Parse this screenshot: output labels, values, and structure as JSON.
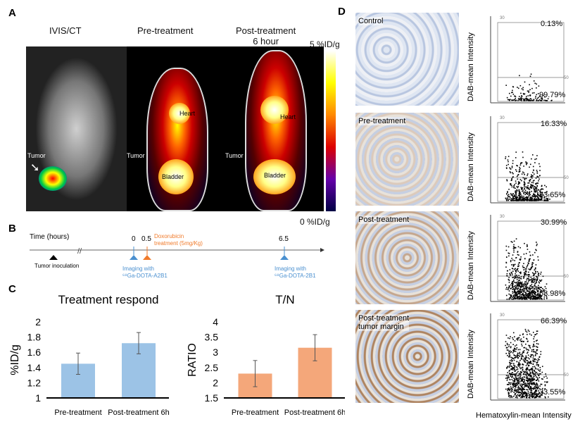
{
  "panel_a": {
    "label": "A",
    "titles": [
      "IVIS/CT",
      "Pre-treatment",
      "Post-treatment\n6 hour"
    ],
    "tumor": "Tumor",
    "heart": "Heart",
    "bladder": "Bladder",
    "scale_max": "5 %ID/g",
    "scale_min": "0 %ID/g"
  },
  "panel_b": {
    "label": "B",
    "time_label": "Time (hours)",
    "t0": "0",
    "t05": "0.5",
    "t65": "6.5",
    "inoculation": "Tumor inoculation",
    "dox": "Doxorubicin\ntreatment (5mg/Kg)",
    "imaging1": "Imaging with",
    "probe1": "⁶⁸Ga-DOTA-A2B1",
    "imaging2": "Imaging with",
    "probe2": "⁶⁸Ga-DOTA-2B1",
    "colors": {
      "blue": "#4a90d0",
      "orange": "#f07a2a"
    }
  },
  "panel_c": {
    "label": "C"
  },
  "chart_data": [
    {
      "type": "bar",
      "title": "Treatment respond",
      "ylabel": "%ID/g",
      "categories": [
        "Pre-treatment",
        "Post-treatment 6h"
      ],
      "values": [
        1.45,
        1.72
      ],
      "errors": [
        0.14,
        0.14
      ],
      "ylim": [
        1,
        2
      ],
      "yticks": [
        "1",
        "1.2",
        "1.4",
        "1.6",
        "1.8",
        "2"
      ],
      "color": "#9cc3e6"
    },
    {
      "type": "bar",
      "title": "T/N",
      "ylabel": "RATIO",
      "categories": [
        "Pre-treatment",
        "Post-treatment 6h"
      ],
      "values": [
        2.3,
        3.15
      ],
      "errors": [
        0.43,
        0.43
      ],
      "ylim": [
        1.5,
        4
      ],
      "yticks": [
        "1.5",
        "2",
        "2.5",
        "3",
        "3.5",
        "4"
      ],
      "color": "#f4a77a"
    }
  ],
  "panel_d": {
    "label": "D",
    "ylabel": "DAB-mean Intensity",
    "xlabel": "Hematoxylin-mean Intensity",
    "rows": [
      {
        "name": "Control",
        "upper": "0.13%",
        "lower": "99.79%",
        "density": 0.15
      },
      {
        "name": "Pre-treatment",
        "upper": "16.33%",
        "lower": "83.65%",
        "density": 0.6
      },
      {
        "name": "Post-treatment",
        "upper": "30.99%",
        "lower": "68.98%",
        "density": 0.8
      },
      {
        "name": "Post-treatment\ntumor margin",
        "upper": "66.39%",
        "lower": "33.55%",
        "density": 1
      }
    ]
  }
}
